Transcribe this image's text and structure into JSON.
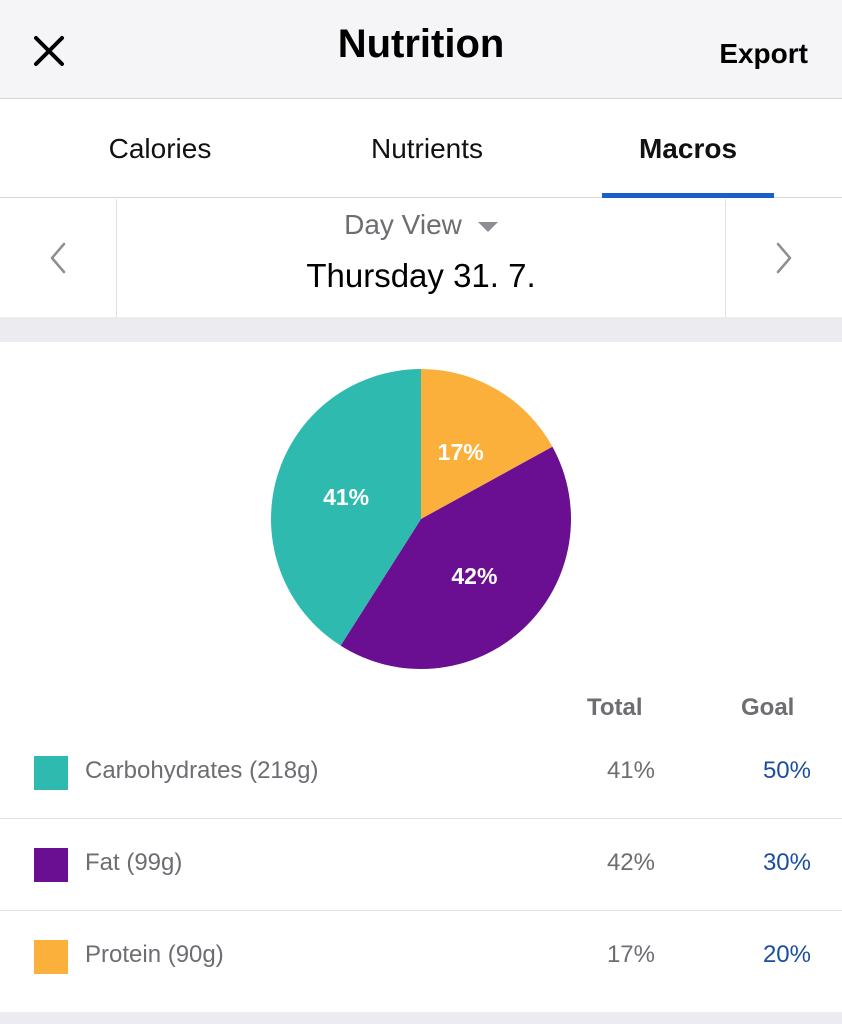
{
  "header": {
    "title": "Nutrition",
    "export_label": "Export"
  },
  "tabs": [
    {
      "label": "Calories",
      "active": false
    },
    {
      "label": "Nutrients",
      "active": false
    },
    {
      "label": "Macros",
      "active": true
    }
  ],
  "day_nav": {
    "view_label": "Day View",
    "date": "Thursday 31. 7."
  },
  "chart_data": {
    "type": "pie",
    "slices": [
      {
        "name": "Carbohydrates",
        "value": 41,
        "label": "41%",
        "color": "#2fbab0"
      },
      {
        "name": "Fat",
        "value": 42,
        "label": "42%",
        "color": "#6a0f91"
      },
      {
        "name": "Protein",
        "value": 17,
        "label": "17%",
        "color": "#fbb03b"
      }
    ],
    "start": "top",
    "direction": "counter-clockwise from Carbohydrates; Protein clockwise from top"
  },
  "table": {
    "total_header": "Total",
    "goal_header": "Goal",
    "rows": [
      {
        "label": "Carbohydrates (218g)",
        "total": "41%",
        "goal": "50%",
        "color": "#2fbab0"
      },
      {
        "label": "Fat (99g)",
        "total": "42%",
        "goal": "30%",
        "color": "#6a0f91"
      },
      {
        "label": "Protein (90g)",
        "total": "17%",
        "goal": "20%",
        "color": "#fbb03b"
      }
    ]
  },
  "colors": {
    "accent": "#1a5fc9",
    "goal_text": "#1a4f9c"
  }
}
